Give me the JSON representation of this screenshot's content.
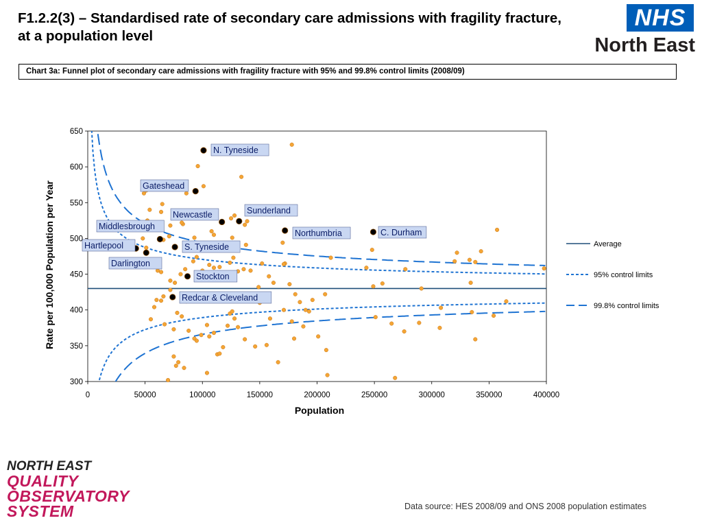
{
  "slide": {
    "title": "F1.2.2(3) – Standardised rate of secondary care admissions with fragility fracture, at a population level",
    "data_source": "Data source: HES 2008/09 and ONS 2008 population estimates"
  },
  "logos": {
    "nhs_text": "NHS",
    "nhs_region": "North East",
    "qos_lines": [
      "NORTH EAST",
      "QUALITY",
      "OBSERVATORY",
      "SYSTEM"
    ]
  },
  "colors": {
    "nhs_blue": "#005EB8",
    "average_line": "#1F4E79",
    "control_limits": "#1E73D2",
    "practice_points": "#F4A535",
    "region_points": "#000000",
    "label_fill": "#C9D7F2",
    "qos_pink": "#C2185B"
  },
  "chart_data": {
    "type": "scatter",
    "title": "Chart 3a: Funnel plot of secondary care admissions with fragility fracture with 95% and 99.8% control limits (2008/09)",
    "xlabel": "Population",
    "ylabel": "Rate per 100,000 Population per Year",
    "xlim": [
      0,
      400000
    ],
    "ylim": [
      300,
      650
    ],
    "xticks": [
      0,
      50000,
      100000,
      150000,
      200000,
      250000,
      300000,
      350000,
      400000
    ],
    "yticks": [
      300,
      350,
      400,
      450,
      500,
      550,
      600,
      650
    ],
    "average": 430,
    "legend": {
      "position": "right",
      "entries": [
        {
          "label": "Average",
          "style": "solid"
        },
        {
          "label": "95% control limits",
          "style": "short-dash"
        },
        {
          "label": "99.8% control limits",
          "style": "long-dash"
        }
      ]
    },
    "regions": [
      {
        "name": "N. Tyneside",
        "x": 101000,
        "y": 623
      },
      {
        "name": "Gateshead",
        "x": 94000,
        "y": 566
      },
      {
        "name": "Newcastle",
        "x": 117000,
        "y": 523
      },
      {
        "name": "Sunderland",
        "x": 132000,
        "y": 524
      },
      {
        "name": "Middlesbrough",
        "x": 63000,
        "y": 499
      },
      {
        "name": "Hartlepool",
        "x": 42000,
        "y": 486
      },
      {
        "name": "S. Tyneside",
        "x": 76000,
        "y": 488
      },
      {
        "name": "Northumbria",
        "x": 172000,
        "y": 511
      },
      {
        "name": "C. Durham",
        "x": 249000,
        "y": 509
      },
      {
        "name": "Darlington",
        "x": 51000,
        "y": 480
      },
      {
        "name": "Stockton",
        "x": 87000,
        "y": 447
      },
      {
        "name": "Redcar & Cleveland",
        "x": 74000,
        "y": 418
      }
    ],
    "practices": [
      [
        49000,
        563
      ],
      [
        51000,
        567
      ],
      [
        54000,
        540
      ],
      [
        52000,
        525
      ],
      [
        65000,
        548
      ],
      [
        64000,
        537
      ],
      [
        72000,
        518
      ],
      [
        83000,
        520
      ],
      [
        82000,
        522
      ],
      [
        86000,
        563
      ],
      [
        96000,
        601
      ],
      [
        101000,
        573
      ],
      [
        108000,
        510
      ],
      [
        112000,
        533
      ],
      [
        110000,
        505
      ],
      [
        125000,
        528
      ],
      [
        128000,
        532
      ],
      [
        126000,
        501
      ],
      [
        134000,
        586
      ],
      [
        137000,
        519
      ],
      [
        139000,
        524
      ],
      [
        138000,
        491
      ],
      [
        178000,
        631
      ],
      [
        170000,
        494
      ],
      [
        172000,
        465
      ],
      [
        48000,
        500
      ],
      [
        51000,
        487
      ],
      [
        66000,
        498
      ],
      [
        71000,
        503
      ],
      [
        87000,
        492
      ],
      [
        95000,
        474
      ],
      [
        93000,
        501
      ],
      [
        61000,
        455
      ],
      [
        64000,
        453
      ],
      [
        72000,
        441
      ],
      [
        76000,
        438
      ],
      [
        81000,
        450
      ],
      [
        85000,
        457
      ],
      [
        92000,
        468
      ],
      [
        100000,
        455
      ],
      [
        106000,
        463
      ],
      [
        110000,
        459
      ],
      [
        115000,
        460
      ],
      [
        118000,
        443
      ],
      [
        124000,
        466
      ],
      [
        127000,
        473
      ],
      [
        131000,
        454
      ],
      [
        136000,
        457
      ],
      [
        142000,
        455
      ],
      [
        149000,
        432
      ],
      [
        152000,
        465
      ],
      [
        158000,
        447
      ],
      [
        162000,
        438
      ],
      [
        171000,
        464
      ],
      [
        176000,
        436
      ],
      [
        181000,
        422
      ],
      [
        185000,
        411
      ],
      [
        190000,
        400
      ],
      [
        196000,
        414
      ],
      [
        207000,
        422
      ],
      [
        212000,
        473
      ],
      [
        243000,
        459
      ],
      [
        248000,
        484
      ],
      [
        249000,
        433
      ],
      [
        257000,
        437
      ],
      [
        277000,
        457
      ],
      [
        291000,
        430
      ],
      [
        320000,
        468
      ],
      [
        322000,
        480
      ],
      [
        333000,
        470
      ],
      [
        334000,
        438
      ],
      [
        338000,
        467
      ],
      [
        343000,
        482
      ],
      [
        357000,
        512
      ],
      [
        365000,
        412
      ],
      [
        398000,
        458
      ],
      [
        55000,
        387
      ],
      [
        58000,
        404
      ],
      [
        60000,
        414
      ],
      [
        64000,
        413
      ],
      [
        66000,
        419
      ],
      [
        67000,
        380
      ],
      [
        72000,
        428
      ],
      [
        75000,
        373
      ],
      [
        78000,
        396
      ],
      [
        82000,
        391
      ],
      [
        83000,
        420
      ],
      [
        86000,
        412
      ],
      [
        88000,
        371
      ],
      [
        93000,
        360
      ],
      [
        95000,
        357
      ],
      [
        99000,
        365
      ],
      [
        104000,
        379
      ],
      [
        106000,
        363
      ],
      [
        110000,
        368
      ],
      [
        113000,
        338
      ],
      [
        115000,
        339
      ],
      [
        118000,
        348
      ],
      [
        122000,
        378
      ],
      [
        124000,
        395
      ],
      [
        126000,
        398
      ],
      [
        128000,
        388
      ],
      [
        131000,
        376
      ],
      [
        137000,
        359
      ],
      [
        146000,
        349
      ],
      [
        150000,
        410
      ],
      [
        156000,
        351
      ],
      [
        159000,
        388
      ],
      [
        166000,
        327
      ],
      [
        171000,
        400
      ],
      [
        178000,
        384
      ],
      [
        180000,
        360
      ],
      [
        188000,
        377
      ],
      [
        193000,
        398
      ],
      [
        201000,
        363
      ],
      [
        208000,
        344
      ],
      [
        209000,
        309
      ],
      [
        251000,
        390
      ],
      [
        265000,
        381
      ],
      [
        268000,
        305
      ],
      [
        276000,
        370
      ],
      [
        289000,
        382
      ],
      [
        307000,
        375
      ],
      [
        308000,
        403
      ],
      [
        335000,
        397
      ],
      [
        338000,
        359
      ],
      [
        354000,
        392
      ],
      [
        70000,
        302
      ],
      [
        75000,
        335
      ],
      [
        77000,
        322
      ],
      [
        79000,
        327
      ],
      [
        84000,
        319
      ],
      [
        104000,
        312
      ]
    ],
    "funnel_limits": {
      "note": "curves computed as average ± z * sqrt(average * 100000 / population)",
      "z95": 1.96,
      "z998": 3.09
    }
  }
}
